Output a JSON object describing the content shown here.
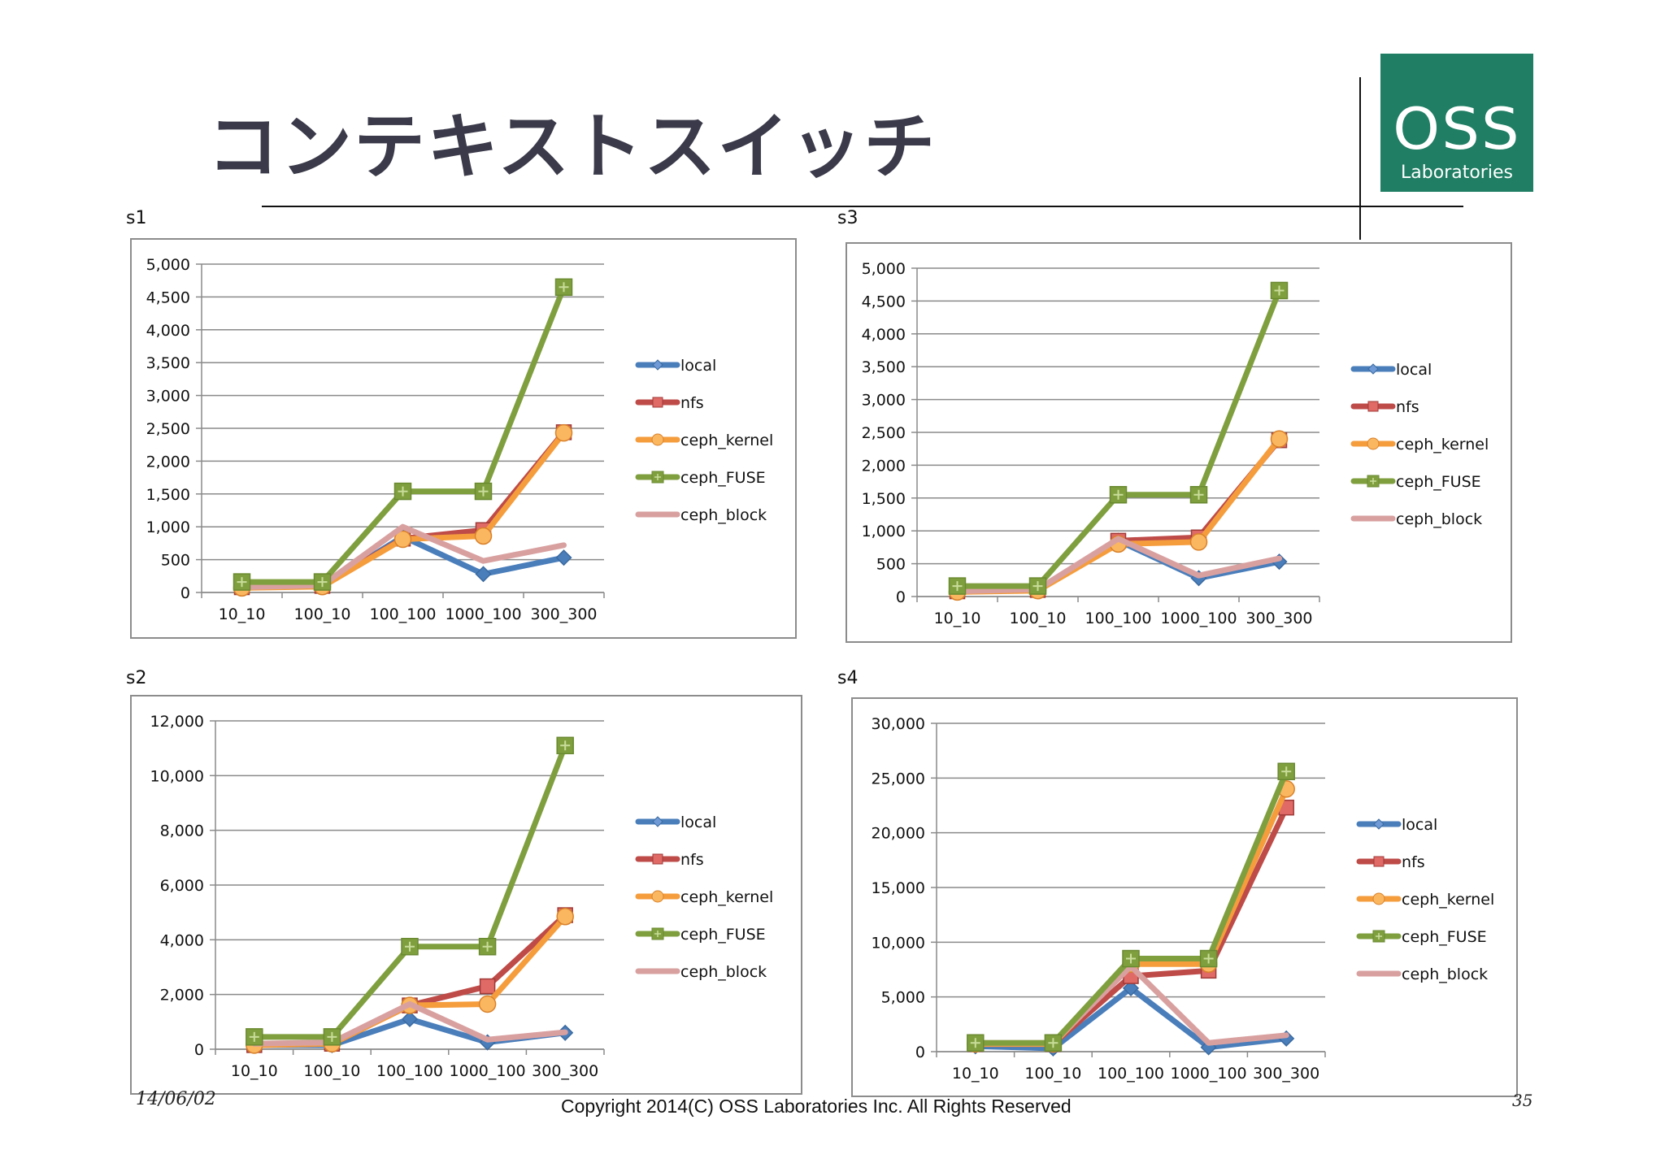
{
  "slide": {
    "title": "コンテキストスイッチ",
    "logo_main": "OSS",
    "logo_sub": "Laboratories",
    "date": "14/06/02",
    "copyright": "Copyright 2014(C) OSS Laboratories Inc. All Rights Reserved",
    "page": "35",
    "colors": {
      "logo_bg": "#1f7e63",
      "local": "#4a7ebb",
      "nfs": "#be4b48",
      "ceph_kernel": "#f59d3d",
      "ceph_FUSE": "#7f9f3f",
      "ceph_block": "#d9a0a0"
    }
  },
  "chart_data": [
    {
      "type": "line",
      "title": "s1",
      "categories": [
        "10_10",
        "100_10",
        "100_100",
        "1000_100",
        "300_300"
      ],
      "ylim": [
        0,
        5000
      ],
      "yticks": [
        "0",
        "500",
        "1,000",
        "1,500",
        "2,000",
        "2,500",
        "3,000",
        "3,500",
        "4,000",
        "4,500",
        "5,000"
      ],
      "legend": "right",
      "series": [
        {
          "name": "local",
          "values": [
            80,
            90,
            850,
            280,
            530
          ]
        },
        {
          "name": "nfs",
          "values": [
            80,
            100,
            820,
            950,
            2440
          ]
        },
        {
          "name": "ceph_kernel",
          "values": [
            70,
            90,
            810,
            860,
            2430
          ]
        },
        {
          "name": "ceph_FUSE",
          "values": [
            160,
            160,
            1540,
            1540,
            4650
          ]
        },
        {
          "name": "ceph_block",
          "values": [
            80,
            110,
            1000,
            480,
            720
          ]
        }
      ]
    },
    {
      "type": "line",
      "title": "s3",
      "categories": [
        "10_10",
        "100_10",
        "100_100",
        "1000_100",
        "300_300"
      ],
      "ylim": [
        0,
        5000
      ],
      "yticks": [
        "0",
        "500",
        "1,000",
        "1,500",
        "2,000",
        "2,500",
        "3,000",
        "3,500",
        "4,000",
        "4,500",
        "5,000"
      ],
      "legend": "right",
      "series": [
        {
          "name": "local",
          "values": [
            80,
            90,
            850,
            280,
            530
          ]
        },
        {
          "name": "nfs",
          "values": [
            80,
            100,
            850,
            900,
            2380
          ]
        },
        {
          "name": "ceph_kernel",
          "values": [
            70,
            90,
            800,
            830,
            2400
          ]
        },
        {
          "name": "ceph_FUSE",
          "values": [
            160,
            160,
            1550,
            1550,
            4660
          ]
        },
        {
          "name": "ceph_block",
          "values": [
            80,
            110,
            880,
            320,
            580
          ]
        }
      ]
    },
    {
      "type": "line",
      "title": "s2",
      "categories": [
        "10_10",
        "100_10",
        "100_100",
        "1000_100",
        "300_300"
      ],
      "ylim": [
        0,
        12000
      ],
      "yticks": [
        "0",
        "2,000",
        "4,000",
        "6,000",
        "8,000",
        "10,000",
        "12,000"
      ],
      "legend": "right",
      "series": [
        {
          "name": "local",
          "values": [
            150,
            150,
            1100,
            250,
            600
          ]
        },
        {
          "name": "nfs",
          "values": [
            150,
            200,
            1600,
            2300,
            4900
          ]
        },
        {
          "name": "ceph_kernel",
          "values": [
            150,
            200,
            1600,
            1650,
            4850
          ]
        },
        {
          "name": "ceph_FUSE",
          "values": [
            450,
            450,
            3750,
            3750,
            11100
          ]
        },
        {
          "name": "ceph_block",
          "values": [
            200,
            250,
            1650,
            350,
            620
          ]
        }
      ]
    },
    {
      "type": "line",
      "title": "s4",
      "categories": [
        "10_10",
        "100_10",
        "100_100",
        "1000_100",
        "300_300"
      ],
      "ylim": [
        0,
        30000
      ],
      "yticks": [
        "0",
        "5,000",
        "10,000",
        "15,000",
        "20,000",
        "25,000",
        "30,000"
      ],
      "legend": "right",
      "series": [
        {
          "name": "local",
          "values": [
            500,
            300,
            5800,
            400,
            1200
          ]
        },
        {
          "name": "nfs",
          "values": [
            700,
            700,
            6900,
            7400,
            22300
          ]
        },
        {
          "name": "ceph_kernel",
          "values": [
            700,
            700,
            8000,
            8000,
            24000
          ]
        },
        {
          "name": "ceph_FUSE",
          "values": [
            800,
            800,
            8500,
            8500,
            25600
          ]
        },
        {
          "name": "ceph_block",
          "values": [
            800,
            800,
            7800,
            800,
            1500
          ]
        }
      ]
    }
  ]
}
